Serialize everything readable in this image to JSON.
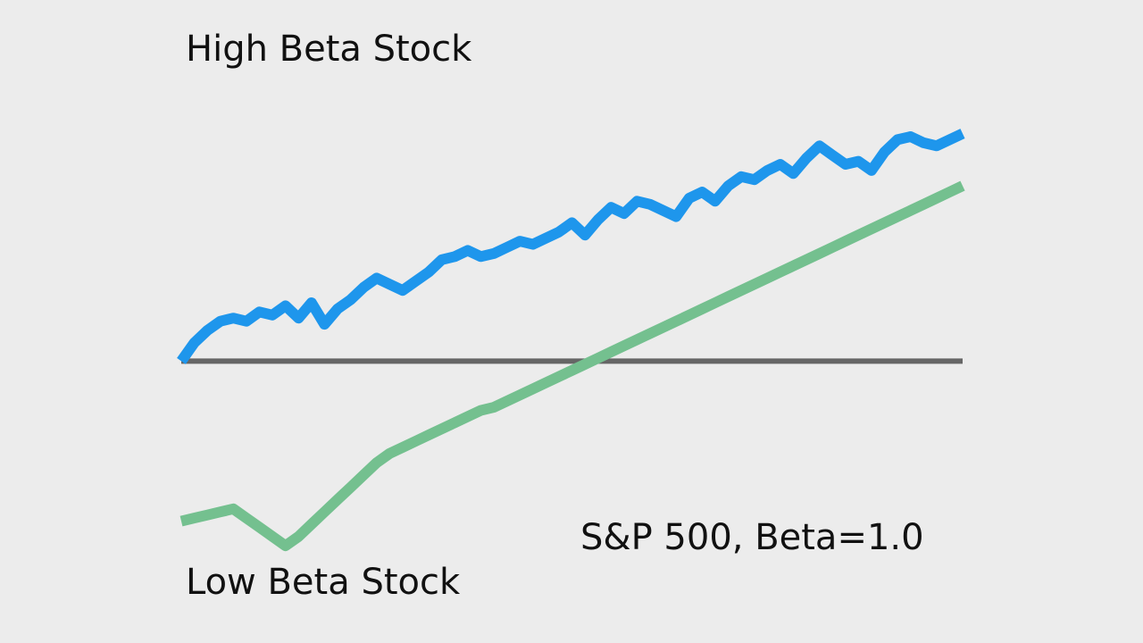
{
  "chart_data": {
    "type": "line",
    "x": [
      0,
      2,
      4,
      6,
      8,
      10,
      12,
      14,
      16,
      18,
      20,
      22,
      24,
      26,
      28,
      30,
      32,
      34,
      36,
      38,
      40,
      42,
      44,
      46,
      48,
      50,
      52,
      54,
      56,
      58,
      60,
      62,
      64,
      66,
      68,
      70,
      72,
      74,
      76,
      78,
      80,
      82,
      84,
      86,
      88,
      90,
      92,
      94,
      96,
      98,
      100,
      102,
      104,
      106,
      108,
      110,
      112,
      114,
      116,
      118,
      120
    ],
    "series": [
      {
        "name": "High Beta Stock",
        "color": "#1e96ec",
        "values": [
          0,
          6,
          10,
          13,
          14,
          13,
          16,
          15,
          18,
          14,
          19,
          12,
          17,
          20,
          24,
          27,
          25,
          23,
          26,
          29,
          33,
          34,
          36,
          34,
          35,
          37,
          39,
          38,
          40,
          42,
          45,
          41,
          46,
          50,
          48,
          52,
          51,
          49,
          47,
          53,
          55,
          52,
          57,
          60,
          59,
          62,
          64,
          61,
          66,
          70,
          67,
          64,
          65,
          62,
          68,
          72,
          73,
          71,
          70,
          72,
          74
        ],
        "label_text": "High Beta Stock"
      },
      {
        "name": "S&P 500, Beta=1.0",
        "color": "#666666",
        "values": [
          0,
          0,
          0,
          0,
          0,
          0,
          0,
          0,
          0,
          0,
          0,
          0,
          0,
          0,
          0,
          0,
          0,
          0,
          0,
          0,
          0,
          0,
          0,
          0,
          0,
          0,
          0,
          0,
          0,
          0,
          0,
          0,
          0,
          0,
          0,
          0,
          0,
          0,
          0,
          0,
          0,
          0,
          0,
          0,
          0,
          0,
          0,
          0,
          0,
          0,
          0,
          0,
          0,
          0,
          0,
          0,
          0,
          0,
          0,
          0,
          0
        ],
        "label_text": "S&P 500, Beta=1.0"
      },
      {
        "name": "Low Beta Stock",
        "color": "#74c08f",
        "values": [
          -52,
          -51,
          -50,
          -49,
          -48,
          -51,
          -54,
          -57,
          -60,
          -57,
          -53,
          -49,
          -45,
          -41,
          -37,
          -33,
          -30,
          -28,
          -26,
          -24,
          -22,
          -20,
          -18,
          -16,
          -15,
          -13,
          -11,
          -9,
          -7,
          -5,
          -3,
          -1,
          1,
          3,
          5,
          7,
          9,
          11,
          13,
          15,
          17,
          19,
          21,
          23,
          25,
          27,
          29,
          31,
          33,
          35,
          37,
          39,
          41,
          43,
          45,
          47,
          49,
          51,
          53,
          55,
          57
        ],
        "label_text": "Low Beta Stock"
      }
    ],
    "ylim": [
      -80,
      100
    ],
    "grid": false,
    "legend": "none"
  }
}
